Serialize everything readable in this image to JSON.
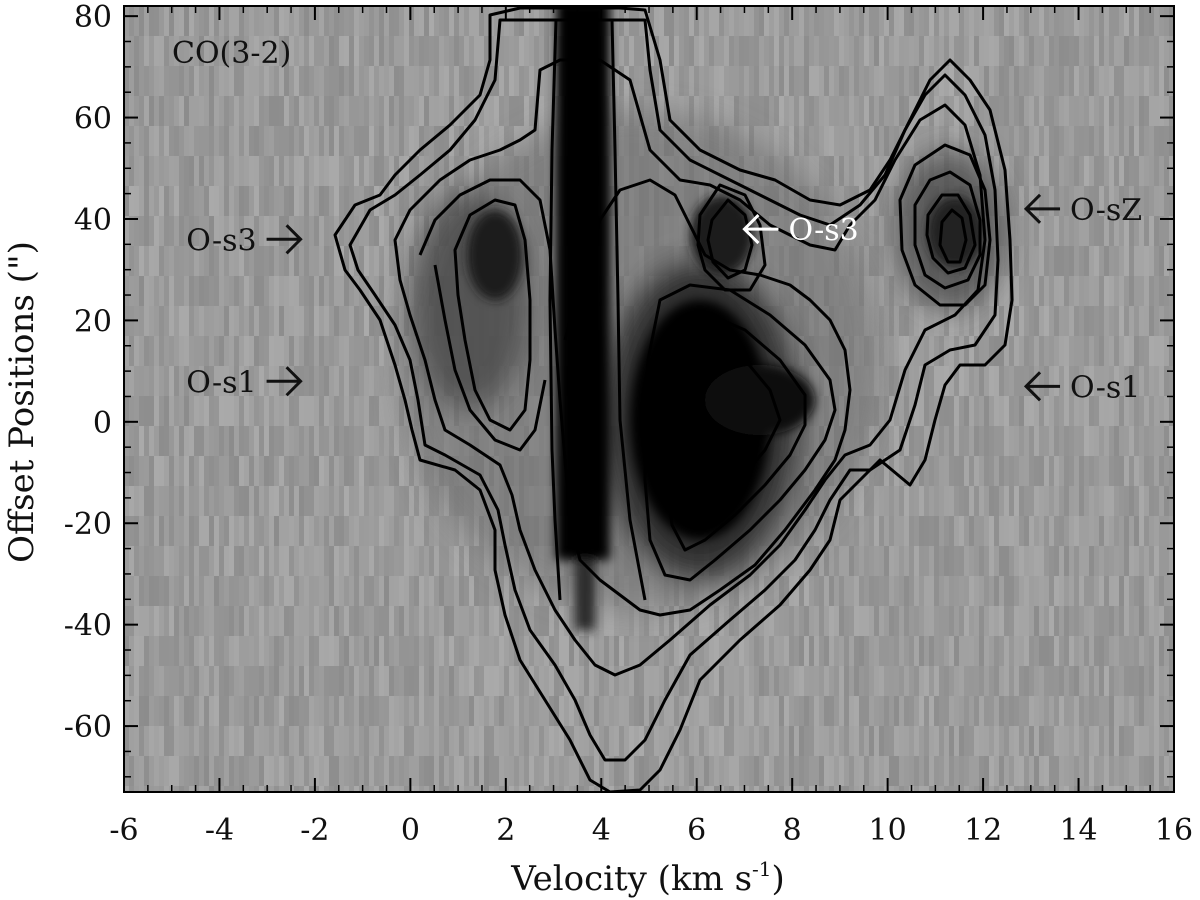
{
  "chart_data": {
    "type": "heatmap",
    "subtype": "position-velocity diagram (grayscale with contours)",
    "panel_label": "CO(3-2)",
    "xlabel": "Velocity (km s",
    "xlabel_sup": "-1",
    "xlabel_end": ")",
    "ylabel": "Offset Positions (\")",
    "xlim": [
      -6,
      16
    ],
    "ylim": [
      -73,
      82
    ],
    "x_ticks": [
      -6,
      -4,
      -2,
      0,
      2,
      4,
      6,
      8,
      10,
      12,
      14,
      16
    ],
    "y_ticks": [
      -60,
      -40,
      -20,
      0,
      20,
      40,
      60,
      80
    ],
    "x_tick_labels": [
      "-6",
      "-4",
      "-2",
      "0",
      "2",
      "4",
      "6",
      "8",
      "10",
      "12",
      "14",
      "16"
    ],
    "y_tick_labels": [
      "-60",
      "-40",
      "-20",
      "0",
      "20",
      "40",
      "60",
      "80"
    ],
    "colormap": "grayscale, darker = stronger emission",
    "features": [
      {
        "label": "central absorption lane",
        "v_range": [
          3.0,
          4.3
        ],
        "offset_range": [
          -30,
          82
        ]
      },
      {
        "label": "emission peak",
        "v": 6.0,
        "offset": 0
      },
      {
        "label": "emission peak",
        "v": 2.0,
        "offset": 35
      },
      {
        "label": "emission peak",
        "v": 6.8,
        "offset": 38
      },
      {
        "label": "emission peak",
        "v": 11.4,
        "offset": 37
      }
    ],
    "annotations": [
      {
        "text": "O-s3",
        "arrow": "right",
        "color": "#111111",
        "v": -2.3,
        "offset": 36
      },
      {
        "text": "O-s1",
        "arrow": "right",
        "color": "#111111",
        "v": -2.3,
        "offset": 8
      },
      {
        "text": "O-s3",
        "arrow": "left",
        "color": "#ffffff",
        "v": 7.0,
        "offset": 38
      },
      {
        "text": "O-sZ",
        "arrow": "left",
        "color": "#111111",
        "v": 12.9,
        "offset": 42
      },
      {
        "text": "O-s1",
        "arrow": "left",
        "color": "#111111",
        "v": 12.9,
        "offset": 7
      }
    ],
    "grid": false
  }
}
